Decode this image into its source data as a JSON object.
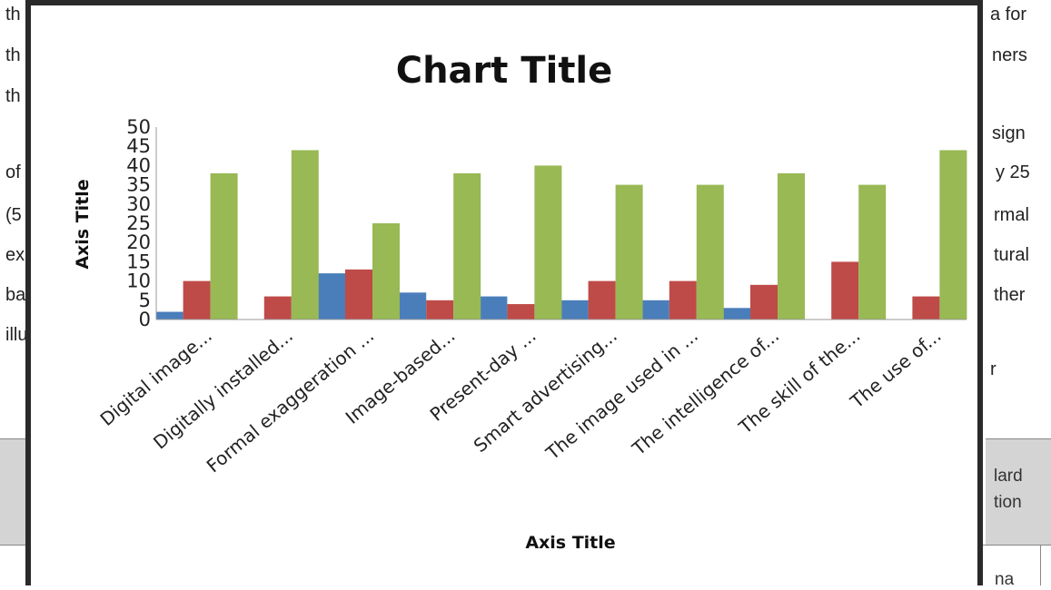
{
  "background_text": {
    "left_fragments": [
      "th",
      "th",
      "th",
      "of",
      "(5",
      "ex",
      "ba",
      "illu"
    ],
    "right_fragments": [
      "a for",
      "ners",
      "sign",
      "y 25",
      "rmal",
      "tural",
      "ther",
      "r"
    ],
    "table_fragments": [
      "lard",
      "tion",
      "na"
    ]
  },
  "chart_data": {
    "type": "bar",
    "title": "Chart Title",
    "xlabel": "Axis Title",
    "ylabel": "Axis Title",
    "ylim": [
      0,
      50
    ],
    "yticks": [
      0,
      5,
      10,
      15,
      20,
      25,
      30,
      35,
      40,
      45,
      50
    ],
    "grid": false,
    "legend": "none",
    "categories": [
      "Digital image...",
      "Digitally installed...",
      "Formal exaggeration ...",
      "Image-based...",
      "Present-day ...",
      "Smart advertising...",
      "The image used in ...",
      "The intelligence of...",
      "The skill of the...",
      "The use of..."
    ],
    "series": [
      {
        "color": "#4a7ebb",
        "values": [
          2,
          0,
          12,
          7,
          6,
          5,
          5,
          3,
          0,
          0
        ]
      },
      {
        "color": "#be4b48",
        "values": [
          10,
          6,
          13,
          5,
          4,
          10,
          10,
          9,
          15,
          6
        ]
      },
      {
        "color": "#98b954",
        "values": [
          38,
          44,
          25,
          38,
          40,
          35,
          35,
          38,
          35,
          44
        ]
      }
    ]
  }
}
